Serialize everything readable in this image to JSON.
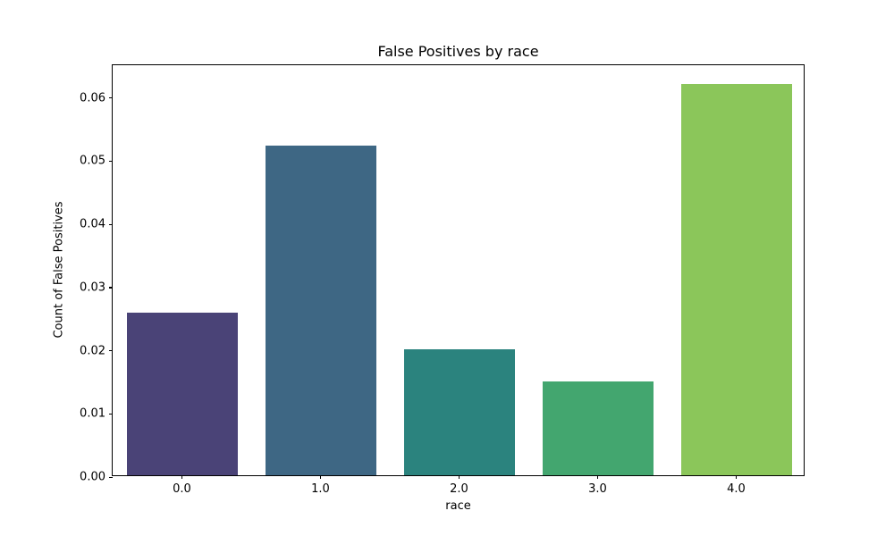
{
  "figure": {
    "background_color": "#ffffff",
    "spine_color": "#000000",
    "text_color": "#000000"
  },
  "chart_data": {
    "type": "bar",
    "title": "False Positives by race",
    "xlabel": "race",
    "ylabel": "Count of False Positives",
    "categories": [
      "0.0",
      "1.0",
      "2.0",
      "3.0",
      "4.0"
    ],
    "values": [
      0.0257,
      0.0522,
      0.0199,
      0.0149,
      0.062
    ],
    "bar_colors": [
      "#4a4377",
      "#3e6784",
      "#2b837e",
      "#43a66f",
      "#8bc65a"
    ],
    "ylim": [
      0,
      0.0652
    ],
    "ytick_values": [
      0,
      0.01,
      0.02,
      0.03,
      0.04,
      0.05,
      0.06
    ],
    "ytick_labels": [
      "0.00",
      "0.01",
      "0.02",
      "0.03",
      "0.04",
      "0.05",
      "0.06"
    ],
    "grid": false,
    "legend": "none",
    "bar_width_fraction": 0.8
  }
}
